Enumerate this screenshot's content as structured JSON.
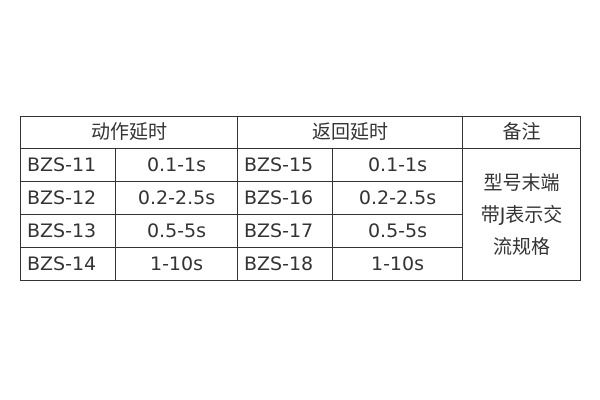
{
  "headers": [
    "动作延时",
    "返回延时",
    "备注"
  ],
  "rows": [
    {
      "op_model": "BZS-11",
      "op_range": "0.1-1s",
      "ret_model": "BZS-15",
      "ret_range": "0.1-1s"
    },
    {
      "op_model": "BZS-12",
      "op_range": "0.2-2.5s",
      "ret_model": "BZS-16",
      "ret_range": "0.2-2.5s"
    },
    {
      "op_model": "BZS-13",
      "op_range": "0.5-5s",
      "ret_model": "BZS-17",
      "ret_range": "0.5-5s"
    },
    {
      "op_model": "BZS-14",
      "op_range": "1-10s",
      "ret_model": "BZS-18",
      "ret_range": "1-10s"
    }
  ],
  "note_lines": [
    "型号末端",
    "带J表示交",
    "流规格"
  ]
}
